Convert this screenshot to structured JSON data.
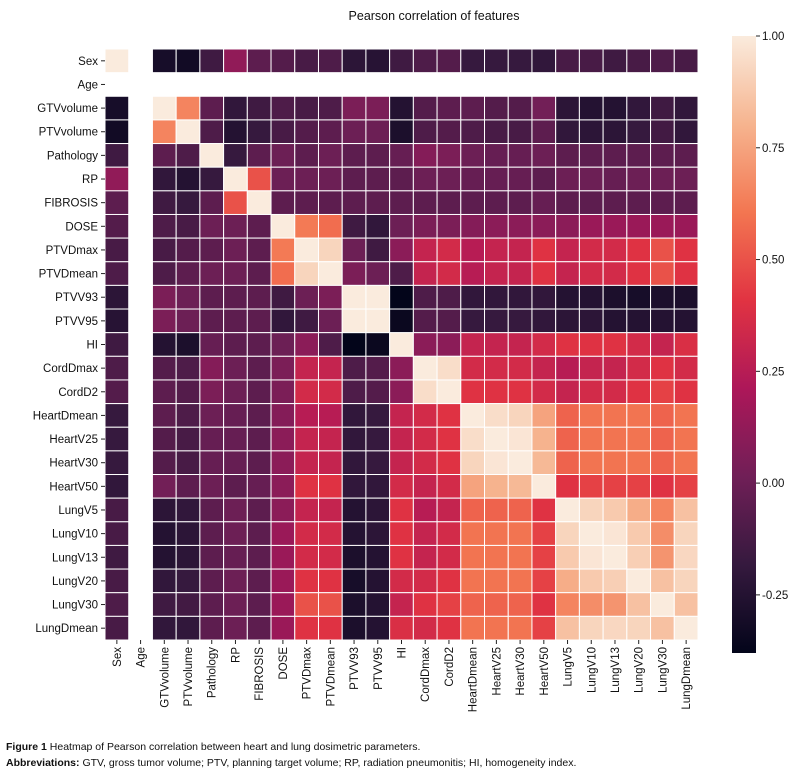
{
  "chart_data": {
    "type": "heatmap",
    "title": "Pearson correlation of features",
    "labels": [
      "Sex",
      "Age",
      "GTVvolume",
      "PTVvolume",
      "Pathology",
      "RP",
      "FIBROSIS",
      "DOSE",
      "PTVDmax",
      "PTVDmean",
      "PTVV93",
      "PTVV95",
      "HI",
      "CordDmax",
      "CordD2",
      "HeartDmean",
      "HeartV25",
      "HeartV30",
      "HeartV50",
      "LungV5",
      "LungV10",
      "LungV13",
      "LungV20",
      "LungV30",
      "LungDmean"
    ],
    "matrix": [
      [
        1.0,
        null,
        -0.3,
        -0.32,
        -0.15,
        0.12,
        -0.05,
        -0.08,
        -0.12,
        -0.1,
        -0.22,
        -0.24,
        -0.15,
        -0.1,
        -0.08,
        -0.18,
        -0.18,
        -0.18,
        -0.2,
        -0.12,
        -0.12,
        -0.15,
        -0.12,
        -0.1,
        -0.12
      ],
      [
        null,
        null,
        null,
        null,
        null,
        null,
        null,
        null,
        null,
        null,
        null,
        null,
        null,
        null,
        null,
        null,
        null,
        null,
        null,
        null,
        null,
        null,
        null,
        null,
        null
      ],
      [
        -0.3,
        null,
        1.0,
        0.65,
        -0.05,
        -0.2,
        -0.15,
        -0.1,
        -0.12,
        -0.1,
        0.05,
        0.05,
        -0.25,
        -0.08,
        -0.05,
        -0.05,
        -0.08,
        -0.08,
        0.02,
        -0.22,
        -0.25,
        -0.25,
        -0.2,
        -0.15,
        -0.2
      ],
      [
        -0.32,
        null,
        0.65,
        1.0,
        -0.1,
        -0.25,
        -0.18,
        -0.12,
        -0.08,
        -0.05,
        0.0,
        0.0,
        -0.28,
        -0.1,
        -0.08,
        -0.1,
        -0.12,
        -0.12,
        -0.05,
        -0.2,
        -0.22,
        -0.22,
        -0.18,
        -0.14,
        -0.2
      ],
      [
        -0.15,
        null,
        -0.05,
        -0.1,
        1.0,
        -0.18,
        -0.05,
        0.0,
        -0.05,
        0.0,
        -0.05,
        -0.05,
        -0.02,
        0.08,
        0.05,
        0.0,
        -0.02,
        -0.02,
        0.0,
        -0.05,
        -0.05,
        -0.05,
        -0.05,
        -0.05,
        -0.05
      ],
      [
        0.12,
        null,
        -0.2,
        -0.25,
        -0.18,
        1.0,
        0.5,
        0.0,
        0.0,
        0.0,
        -0.05,
        -0.05,
        -0.05,
        0.0,
        0.0,
        -0.02,
        -0.02,
        -0.02,
        -0.05,
        0.0,
        0.0,
        -0.02,
        0.0,
        0.0,
        0.0
      ],
      [
        -0.05,
        null,
        -0.15,
        -0.18,
        -0.05,
        0.5,
        1.0,
        -0.05,
        -0.05,
        -0.05,
        -0.05,
        -0.05,
        -0.05,
        -0.05,
        -0.05,
        -0.05,
        -0.05,
        -0.05,
        -0.02,
        -0.05,
        -0.05,
        -0.05,
        -0.05,
        -0.05,
        -0.05
      ],
      [
        -0.08,
        null,
        -0.1,
        -0.12,
        0.0,
        0.0,
        -0.05,
        1.0,
        0.62,
        0.58,
        -0.15,
        -0.2,
        0.0,
        0.05,
        0.05,
        0.08,
        0.1,
        0.1,
        0.1,
        0.1,
        0.15,
        0.15,
        0.15,
        0.15,
        0.15
      ],
      [
        -0.12,
        null,
        -0.12,
        -0.08,
        -0.05,
        0.0,
        -0.05,
        0.62,
        1.0,
        0.92,
        0.0,
        -0.15,
        0.1,
        0.3,
        0.35,
        0.25,
        0.3,
        0.3,
        0.4,
        0.3,
        0.35,
        0.35,
        0.4,
        0.5,
        0.4
      ],
      [
        -0.1,
        null,
        -0.1,
        -0.05,
        0.0,
        0.0,
        -0.05,
        0.58,
        0.92,
        1.0,
        0.05,
        0.0,
        -0.1,
        0.3,
        0.35,
        0.25,
        0.3,
        0.3,
        0.4,
        0.3,
        0.35,
        0.35,
        0.4,
        0.5,
        0.4
      ],
      [
        -0.22,
        null,
        0.05,
        0.0,
        -0.05,
        -0.05,
        -0.05,
        -0.15,
        0.0,
        0.05,
        1.0,
        1.0,
        -0.38,
        -0.1,
        -0.1,
        -0.2,
        -0.2,
        -0.2,
        -0.2,
        -0.25,
        -0.25,
        -0.28,
        -0.3,
        -0.28,
        -0.28
      ],
      [
        -0.24,
        null,
        0.05,
        0.0,
        -0.05,
        -0.05,
        -0.05,
        -0.2,
        -0.15,
        0.0,
        1.0,
        1.0,
        -0.35,
        -0.08,
        -0.08,
        -0.18,
        -0.18,
        -0.18,
        -0.2,
        -0.22,
        -0.22,
        -0.25,
        -0.25,
        -0.25,
        -0.25
      ],
      [
        -0.15,
        null,
        -0.25,
        -0.28,
        -0.02,
        -0.05,
        -0.05,
        0.0,
        0.1,
        -0.1,
        -0.38,
        -0.35,
        1.0,
        0.1,
        0.1,
        0.3,
        0.3,
        0.3,
        0.35,
        0.4,
        0.4,
        0.4,
        0.35,
        0.3,
        0.38
      ],
      [
        -0.1,
        null,
        -0.08,
        -0.1,
        0.08,
        0.0,
        -0.05,
        0.05,
        0.3,
        0.3,
        -0.1,
        -0.08,
        0.1,
        1.0,
        0.95,
        0.35,
        0.35,
        0.35,
        0.3,
        0.25,
        0.3,
        0.3,
        0.35,
        0.4,
        0.35
      ],
      [
        -0.08,
        null,
        -0.05,
        -0.08,
        0.05,
        0.0,
        -0.05,
        0.05,
        0.35,
        0.35,
        -0.1,
        -0.08,
        0.1,
        0.95,
        1.0,
        0.4,
        0.4,
        0.4,
        0.35,
        0.3,
        0.35,
        0.35,
        0.4,
        0.45,
        0.4
      ],
      [
        -0.18,
        null,
        -0.05,
        -0.1,
        0.0,
        -0.02,
        -0.05,
        0.08,
        0.25,
        0.25,
        -0.2,
        -0.18,
        0.3,
        0.35,
        0.4,
        1.0,
        0.95,
        0.92,
        0.75,
        0.55,
        0.6,
        0.6,
        0.6,
        0.55,
        0.6
      ],
      [
        -0.18,
        null,
        -0.08,
        -0.12,
        -0.02,
        -0.02,
        -0.05,
        0.1,
        0.3,
        0.3,
        -0.2,
        -0.18,
        0.3,
        0.35,
        0.4,
        0.95,
        1.0,
        0.98,
        0.8,
        0.55,
        0.6,
        0.6,
        0.6,
        0.55,
        0.6
      ],
      [
        -0.18,
        null,
        -0.08,
        -0.12,
        -0.02,
        -0.02,
        -0.05,
        0.1,
        0.3,
        0.3,
        -0.2,
        -0.18,
        0.3,
        0.35,
        0.4,
        0.92,
        0.98,
        1.0,
        0.82,
        0.55,
        0.6,
        0.6,
        0.6,
        0.55,
        0.6
      ],
      [
        -0.2,
        null,
        0.02,
        -0.05,
        0.0,
        -0.05,
        -0.02,
        0.1,
        0.4,
        0.4,
        -0.2,
        -0.2,
        0.35,
        0.3,
        0.35,
        0.75,
        0.8,
        0.82,
        1.0,
        0.4,
        0.45,
        0.45,
        0.45,
        0.4,
        0.45
      ],
      [
        -0.12,
        null,
        -0.22,
        -0.2,
        -0.05,
        0.0,
        -0.05,
        0.1,
        0.3,
        0.3,
        -0.25,
        -0.22,
        0.4,
        0.25,
        0.3,
        0.55,
        0.55,
        0.55,
        0.4,
        1.0,
        0.92,
        0.88,
        0.78,
        0.65,
        0.85
      ],
      [
        -0.12,
        null,
        -0.25,
        -0.22,
        -0.05,
        0.0,
        -0.05,
        0.15,
        0.35,
        0.35,
        -0.25,
        -0.22,
        0.4,
        0.3,
        0.35,
        0.6,
        0.6,
        0.6,
        0.45,
        0.92,
        1.0,
        0.98,
        0.88,
        0.68,
        0.92
      ],
      [
        -0.15,
        null,
        -0.25,
        -0.22,
        -0.05,
        -0.02,
        -0.05,
        0.15,
        0.35,
        0.35,
        -0.28,
        -0.25,
        0.4,
        0.3,
        0.35,
        0.6,
        0.6,
        0.6,
        0.45,
        0.88,
        0.98,
        1.0,
        0.9,
        0.7,
        0.93
      ],
      [
        -0.12,
        null,
        -0.2,
        -0.18,
        -0.05,
        0.0,
        -0.05,
        0.15,
        0.4,
        0.4,
        -0.3,
        -0.25,
        0.35,
        0.35,
        0.4,
        0.6,
        0.6,
        0.6,
        0.45,
        0.78,
        0.88,
        0.9,
        1.0,
        0.85,
        0.92
      ],
      [
        -0.1,
        null,
        -0.15,
        -0.14,
        -0.05,
        0.0,
        -0.05,
        0.15,
        0.5,
        0.5,
        -0.28,
        -0.25,
        0.3,
        0.4,
        0.45,
        0.55,
        0.55,
        0.55,
        0.4,
        0.65,
        0.68,
        0.7,
        0.85,
        1.0,
        0.85
      ],
      [
        -0.12,
        null,
        -0.2,
        -0.2,
        -0.05,
        0.0,
        -0.05,
        0.15,
        0.4,
        0.4,
        -0.28,
        -0.25,
        0.38,
        0.35,
        0.4,
        0.6,
        0.6,
        0.6,
        0.45,
        0.85,
        0.92,
        0.93,
        0.92,
        0.85,
        1.0
      ]
    ],
    "colorbar": {
      "range": [
        -0.38,
        1.0
      ],
      "ticks": [
        1.0,
        0.75,
        0.5,
        0.25,
        0.0,
        -0.25
      ],
      "tick_labels": [
        "1.00",
        "0.75",
        "0.50",
        "0.25",
        "0.00",
        "-0.25"
      ],
      "colormap": "rocket",
      "stops": [
        "#03051a",
        "#35193e",
        "#701f57",
        "#ad1759",
        "#e13342",
        "#f37651",
        "#f6b48f",
        "#faebdd"
      ]
    }
  },
  "caption": {
    "figure_label": "Figure 1",
    "figure_text": "Heatmap of Pearson correlation between heart and lung dosimetric parameters.",
    "abbr_label": "Abbreviations:",
    "abbr_text": "GTV, gross tumor volume; PTV, planning target volume; RP, radiation pneumonitis; HI, homogeneity index."
  }
}
